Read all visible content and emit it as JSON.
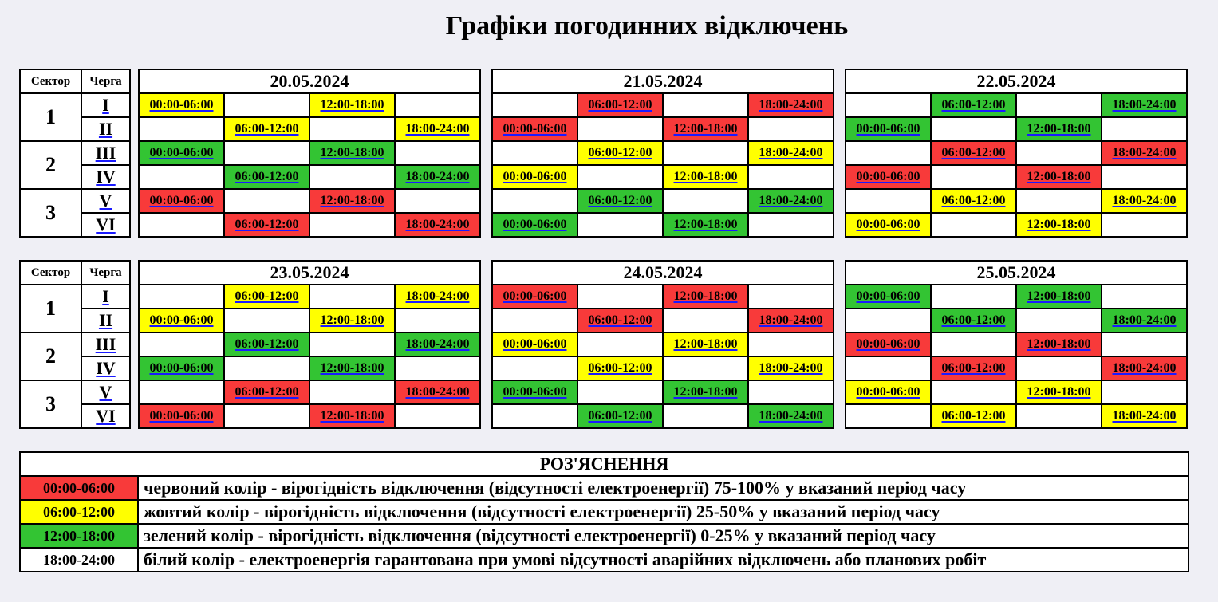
{
  "title": "Графіки погодинних відключень",
  "queue_header": {
    "sector": "Сектор",
    "queue": "Черга"
  },
  "sectors": [
    "1",
    "2",
    "3"
  ],
  "queues": [
    "I",
    "II",
    "III",
    "IV",
    "V",
    "VI"
  ],
  "slots": [
    "00:00-06:00",
    "06:00-12:00",
    "12:00-18:00",
    "18:00-24:00"
  ],
  "colors": {
    "red": "#f83a3a",
    "yellow": "#ffff00",
    "green": "#33c433",
    "white": "#ffffff",
    "background": "#efeff5"
  },
  "days": [
    {
      "date": "20.05.2024",
      "rows": [
        [
          "yellow",
          "white",
          "yellow",
          "white"
        ],
        [
          "white",
          "yellow",
          "white",
          "yellow"
        ],
        [
          "green",
          "white",
          "green",
          "white"
        ],
        [
          "white",
          "green",
          "white",
          "green"
        ],
        [
          "red",
          "white",
          "red",
          "white"
        ],
        [
          "white",
          "red",
          "white",
          "red"
        ]
      ]
    },
    {
      "date": "21.05.2024",
      "rows": [
        [
          "white",
          "red",
          "white",
          "red"
        ],
        [
          "red",
          "white",
          "red",
          "white"
        ],
        [
          "white",
          "yellow",
          "white",
          "yellow"
        ],
        [
          "yellow",
          "white",
          "yellow",
          "white"
        ],
        [
          "white",
          "green",
          "white",
          "green"
        ],
        [
          "green",
          "white",
          "green",
          "white"
        ]
      ]
    },
    {
      "date": "22.05.2024",
      "rows": [
        [
          "white",
          "green",
          "white",
          "green"
        ],
        [
          "green",
          "white",
          "green",
          "white"
        ],
        [
          "white",
          "red",
          "white",
          "red"
        ],
        [
          "red",
          "white",
          "red",
          "white"
        ],
        [
          "white",
          "yellow",
          "white",
          "yellow"
        ],
        [
          "yellow",
          "white",
          "yellow",
          "white"
        ]
      ]
    },
    {
      "date": "23.05.2024",
      "rows": [
        [
          "white",
          "yellow",
          "white",
          "yellow"
        ],
        [
          "yellow",
          "white",
          "yellow",
          "white"
        ],
        [
          "white",
          "green",
          "white",
          "green"
        ],
        [
          "green",
          "white",
          "green",
          "white"
        ],
        [
          "white",
          "red",
          "white",
          "red"
        ],
        [
          "red",
          "white",
          "red",
          "white"
        ]
      ]
    },
    {
      "date": "24.05.2024",
      "rows": [
        [
          "red",
          "white",
          "red",
          "white"
        ],
        [
          "white",
          "red",
          "white",
          "red"
        ],
        [
          "yellow",
          "white",
          "yellow",
          "white"
        ],
        [
          "white",
          "yellow",
          "white",
          "yellow"
        ],
        [
          "green",
          "white",
          "green",
          "white"
        ],
        [
          "white",
          "green",
          "white",
          "green"
        ]
      ]
    },
    {
      "date": "25.05.2024",
      "rows": [
        [
          "green",
          "white",
          "green",
          "white"
        ],
        [
          "white",
          "green",
          "white",
          "green"
        ],
        [
          "red",
          "white",
          "red",
          "white"
        ],
        [
          "white",
          "red",
          "white",
          "red"
        ],
        [
          "yellow",
          "white",
          "yellow",
          "white"
        ],
        [
          "white",
          "yellow",
          "white",
          "yellow"
        ]
      ]
    }
  ],
  "legend": {
    "title": "РОЗ'ЯСНЕННЯ",
    "items": [
      {
        "time": "00:00-06:00",
        "color": "red",
        "text": "червоний колір - вірогідність відключення (відсутності електроенергії) 75-100% у вказаний період часу"
      },
      {
        "time": "06:00-12:00",
        "color": "yellow",
        "text": "жовтий колір - вірогідність відключення (відсутності електроенергії) 25-50% у вказаний період часу"
      },
      {
        "time": "12:00-18:00",
        "color": "green",
        "text": "зелений колір - вірогідність відключення (відсутності електроенергії) 0-25% у вказаний період часу"
      },
      {
        "time": "18:00-24:00",
        "color": "white",
        "text": "білий колір - електроенергія гарантована при умові відсутності аварійних відключень або планових робіт"
      }
    ]
  }
}
